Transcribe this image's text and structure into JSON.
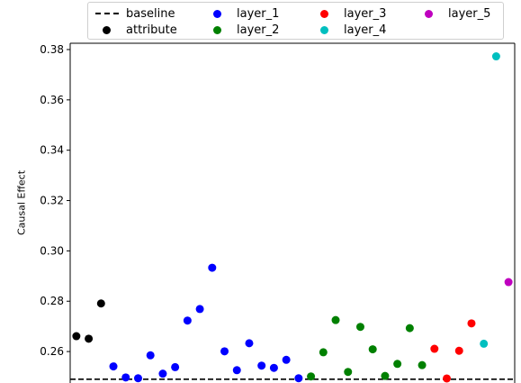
{
  "chart_data": {
    "type": "scatter",
    "title": "",
    "xlabel": "",
    "ylabel": "Causal Effect",
    "ylim": [
      0.2475,
      0.3825
    ],
    "y_ticks": [
      "0.26",
      "0.28",
      "0.30",
      "0.32",
      "0.34",
      "0.36",
      "0.38"
    ],
    "y_tick_values": [
      0.26,
      0.28,
      0.3,
      0.32,
      0.34,
      0.36,
      0.38
    ],
    "x_ticks": [],
    "grid": false,
    "legend_position": "top",
    "baseline": {
      "name": "baseline",
      "value": 0.249,
      "style": "dashed",
      "color": "#000000"
    },
    "series": [
      {
        "name": "attribute",
        "color": "#000000",
        "x": [
          1,
          2,
          3
        ],
        "values": [
          0.2661,
          0.2651,
          0.2791
        ]
      },
      {
        "name": "layer_1",
        "color": "#0000ff",
        "x": [
          4,
          5,
          6,
          7,
          8,
          9,
          10,
          11,
          12,
          13,
          14,
          15,
          16,
          17,
          18,
          19
        ],
        "values": [
          0.2541,
          0.2497,
          0.2494,
          0.2585,
          0.2512,
          0.2538,
          0.2723,
          0.2769,
          0.2933,
          0.2601,
          0.2526,
          0.2633,
          0.2544,
          0.2535,
          0.2567,
          0.2494
        ]
      },
      {
        "name": "layer_2",
        "color": "#008000",
        "x": [
          20,
          21,
          22,
          23,
          24,
          25,
          26,
          27,
          28,
          29
        ],
        "values": [
          0.2501,
          0.2597,
          0.2725,
          0.2519,
          0.2698,
          0.2609,
          0.2503,
          0.2551,
          0.2693,
          0.2546
        ]
      },
      {
        "name": "layer_3",
        "color": "#ff0000",
        "x": [
          30,
          31,
          32,
          33
        ],
        "values": [
          0.2611,
          0.2493,
          0.2603,
          0.2712
        ]
      },
      {
        "name": "layer_4",
        "color": "#00bfbf",
        "x": [
          34,
          35
        ],
        "values": [
          0.2631,
          0.3773
        ]
      },
      {
        "name": "layer_5",
        "color": "#bf00bf",
        "x": [
          36
        ],
        "values": [
          0.2876
        ]
      }
    ],
    "legend": [
      {
        "label": "baseline",
        "marker": "line",
        "color": "#000000"
      },
      {
        "label": "attribute",
        "marker": "dot",
        "color": "#000000"
      },
      {
        "label": "layer_1",
        "marker": "dot",
        "color": "#0000ff"
      },
      {
        "label": "layer_2",
        "marker": "dot",
        "color": "#008000"
      },
      {
        "label": "layer_3",
        "marker": "dot",
        "color": "#ff0000"
      },
      {
        "label": "layer_4",
        "marker": "dot",
        "color": "#00bfbf"
      },
      {
        "label": "layer_5",
        "marker": "dot",
        "color": "#bf00bf"
      }
    ]
  }
}
